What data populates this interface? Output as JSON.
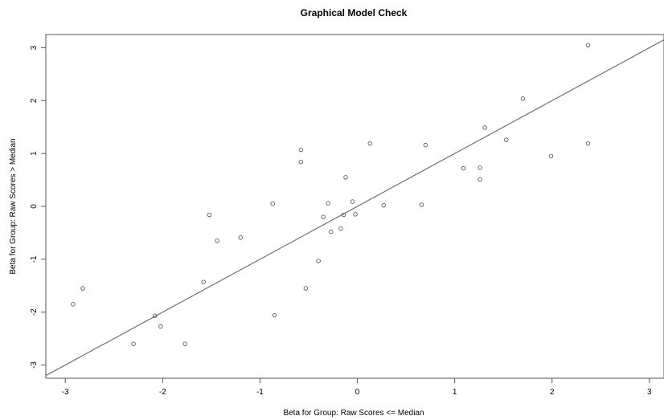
{
  "chart_data": {
    "type": "scatter",
    "title": "Graphical Model Check",
    "xlabel": "Beta for Group: Raw Scores <= Median",
    "ylabel": "Beta for Group: Raw Scores > Median",
    "xlim": [
      -3.2,
      3.15
    ],
    "ylim": [
      -3.25,
      3.25
    ],
    "x_ticks": [
      -3,
      -2,
      -1,
      0,
      1,
      2,
      3
    ],
    "y_ticks": [
      -3,
      -2,
      -1,
      0,
      1,
      2,
      3
    ],
    "grid": false,
    "reference_line": {
      "type": "identity",
      "slope": 1,
      "intercept": 0
    },
    "points": [
      {
        "x": -2.92,
        "y": -1.85
      },
      {
        "x": -2.82,
        "y": -1.55
      },
      {
        "x": -2.3,
        "y": -2.6
      },
      {
        "x": -2.08,
        "y": -2.07
      },
      {
        "x": -2.02,
        "y": -2.27
      },
      {
        "x": -1.77,
        "y": -2.6
      },
      {
        "x": -1.58,
        "y": -1.43
      },
      {
        "x": -1.52,
        "y": -0.16
      },
      {
        "x": -1.44,
        "y": -0.65
      },
      {
        "x": -1.2,
        "y": -0.59
      },
      {
        "x": -0.87,
        "y": 0.05
      },
      {
        "x": -0.85,
        "y": -2.06
      },
      {
        "x": -0.58,
        "y": 1.07
      },
      {
        "x": -0.58,
        "y": 0.84
      },
      {
        "x": -0.53,
        "y": -1.55
      },
      {
        "x": -0.4,
        "y": -1.03
      },
      {
        "x": -0.35,
        "y": -0.2
      },
      {
        "x": -0.3,
        "y": 0.06
      },
      {
        "x": -0.27,
        "y": -0.48
      },
      {
        "x": -0.17,
        "y": -0.42
      },
      {
        "x": -0.14,
        "y": -0.16
      },
      {
        "x": -0.12,
        "y": 0.55
      },
      {
        "x": -0.05,
        "y": 0.09
      },
      {
        "x": -0.02,
        "y": -0.15
      },
      {
        "x": 0.13,
        "y": 1.19
      },
      {
        "x": 0.27,
        "y": 0.02
      },
      {
        "x": 0.66,
        "y": 0.03
      },
      {
        "x": 0.7,
        "y": 1.16
      },
      {
        "x": 1.09,
        "y": 0.72
      },
      {
        "x": 1.26,
        "y": 0.73
      },
      {
        "x": 1.26,
        "y": 0.51
      },
      {
        "x": 1.31,
        "y": 1.49
      },
      {
        "x": 1.53,
        "y": 1.26
      },
      {
        "x": 1.7,
        "y": 2.04
      },
      {
        "x": 1.99,
        "y": 0.95
      },
      {
        "x": 2.37,
        "y": 3.05
      },
      {
        "x": 2.37,
        "y": 1.19
      }
    ]
  }
}
